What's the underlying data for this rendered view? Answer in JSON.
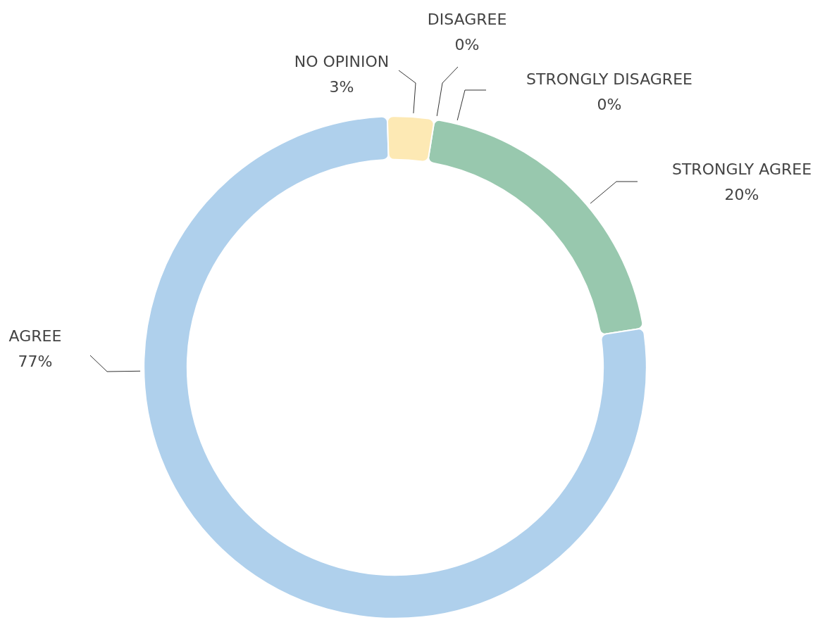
{
  "chart_data": {
    "type": "donut",
    "categories": [
      "STRONGLY AGREE",
      "AGREE",
      "NO OPINION",
      "DISAGREE",
      "STRONGLY DISAGREE"
    ],
    "values": [
      20,
      77,
      3,
      0,
      0
    ],
    "colors": [
      "#98c8ae",
      "#afd0ec",
      "#fde9b4",
      "#f4b183",
      "#e8898a"
    ],
    "value_labels": [
      "20%",
      "77%",
      "3%",
      "0%",
      "0%"
    ],
    "legend": false
  }
}
